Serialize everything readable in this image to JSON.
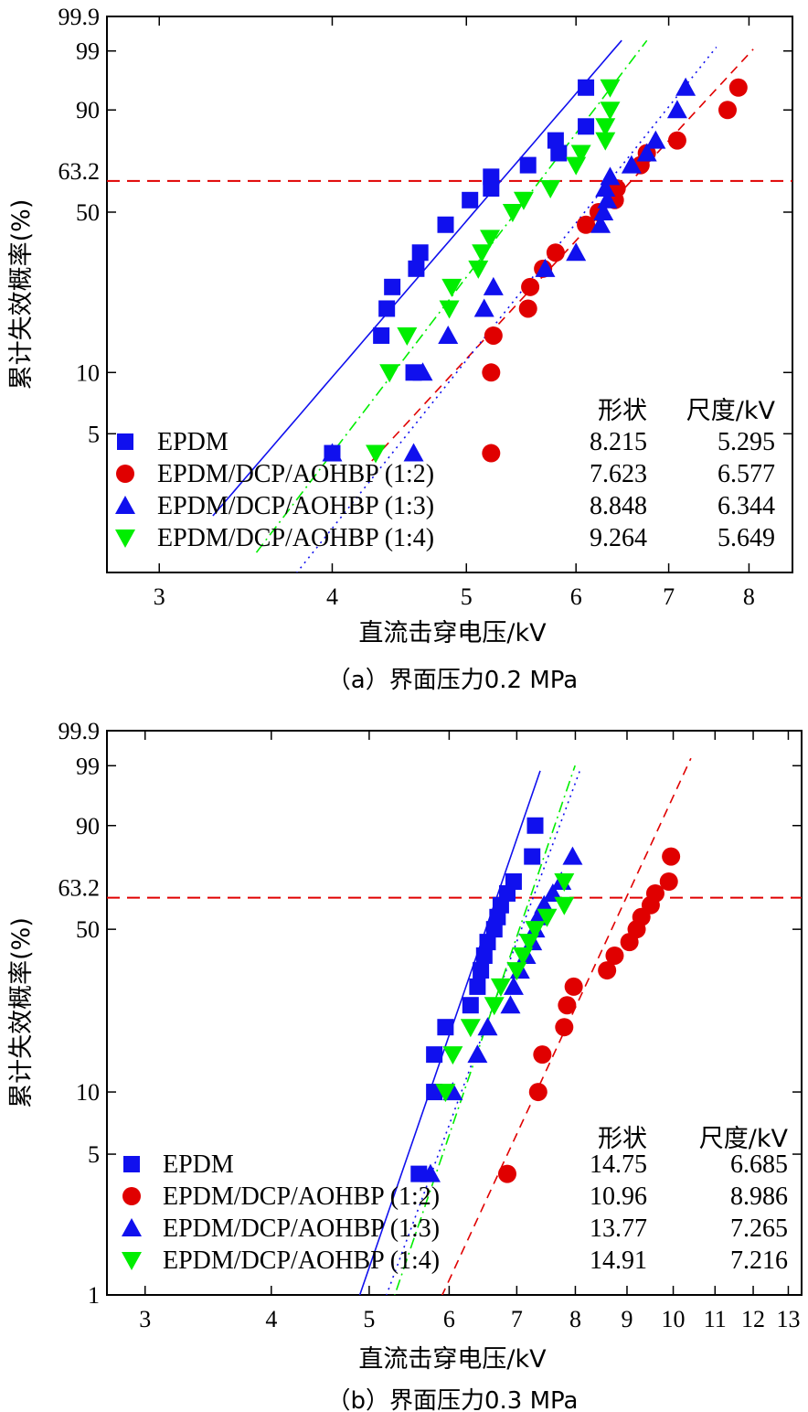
{
  "chart_data": [
    {
      "type": "scatter",
      "panel": "a",
      "caption": "（a）界面压力0.2 MPa",
      "xlabel": "直流击穿电压/kV",
      "ylabel": "累计失效概率(%)",
      "x_scale": "log",
      "y_scale": "weibull",
      "xlim": [
        2.75,
        8.6
      ],
      "ylim": [
        1,
        99.9
      ],
      "x_ticks": [
        3,
        4,
        5,
        6,
        7,
        8
      ],
      "x_tick_labels": [
        "3",
        "4",
        "5",
        "6",
        "7",
        "8"
      ],
      "y_ticks": [
        5,
        10,
        50,
        90,
        99,
        99.9
      ],
      "y_tick_labels": [
        "5",
        "10",
        "50",
        "90",
        "99",
        "99.9"
      ],
      "reference_line": {
        "y": 63.2,
        "label": "63.2",
        "color": "#e00000"
      },
      "legend_header": {
        "shape": "形状",
        "scale": "尺度/kV"
      },
      "series": [
        {
          "name": "EPDM",
          "shape": "8.215",
          "scale": "5.295",
          "marker": "square",
          "color": "#1010ee",
          "line_color": "#1010ee",
          "line_style": "solid",
          "beta": 8.215,
          "eta": 5.295,
          "x": [
            4.0,
            4.58,
            4.34,
            4.38,
            4.42,
            4.6,
            4.63,
            4.83,
            5.03,
            5.21,
            5.21,
            5.54,
            5.83,
            5.8,
            6.1,
            6.1
          ],
          "y": [
            4,
            10,
            15,
            20,
            25,
            30,
            35,
            45,
            55,
            60,
            65,
            70,
            75,
            80,
            85,
            95
          ]
        },
        {
          "name": "EPDM/DCP/AOHBP (1:2)",
          "shape": "7.623",
          "scale": "6.577",
          "marker": "circle",
          "color": "#e00000",
          "line_color": "#e00000",
          "line_style": "dashed",
          "beta": 7.623,
          "eta": 6.577,
          "x": [
            5.21,
            5.21,
            5.23,
            5.54,
            5.56,
            5.68,
            5.8,
            6.1,
            6.23,
            6.4,
            6.42,
            6.68,
            6.75,
            7.1,
            7.72,
            7.86
          ],
          "y": [
            4,
            10,
            15,
            20,
            25,
            30,
            35,
            45,
            50,
            55,
            60,
            70,
            75,
            80,
            90,
            95
          ]
        },
        {
          "name": "EPDM/DCP/AOHBP (1:3)",
          "shape": "8.848",
          "scale": "6.344",
          "marker": "triangle-up",
          "color": "#1010ee",
          "line_color": "#1010ee",
          "line_style": "dotted",
          "beta": 8.848,
          "eta": 6.344,
          "x": [
            4.0,
            4.58,
            4.65,
            4.85,
            5.15,
            5.23,
            5.7,
            6.0,
            6.25,
            6.28,
            6.32,
            6.3,
            6.35,
            6.58,
            6.75,
            6.85,
            7.1,
            7.2
          ],
          "y": [
            4,
            4,
            10,
            15,
            20,
            25,
            30,
            35,
            45,
            50,
            55,
            60,
            65,
            70,
            75,
            80,
            90,
            95
          ]
        },
        {
          "name": "EPDM/DCP/AOHBP (1:4)",
          "shape": "9.264",
          "scale": "5.649",
          "marker": "triangle-down",
          "color": "#00ee00",
          "line_color": "#00ee00",
          "line_style": "dashdot",
          "beta": 9.264,
          "eta": 5.649,
          "x": [
            4.3,
            4.4,
            4.53,
            4.86,
            4.88,
            5.1,
            5.13,
            5.2,
            5.4,
            5.5,
            5.75,
            6.0,
            6.05,
            6.3,
            6.3,
            6.35,
            6.35
          ],
          "y": [
            4,
            10,
            15,
            20,
            25,
            30,
            35,
            40,
            50,
            55,
            60,
            70,
            75,
            80,
            85,
            90,
            95
          ]
        }
      ]
    },
    {
      "type": "scatter",
      "panel": "b",
      "caption": "（b）界面压力0.3 MPa",
      "xlabel": "直流击穿电压/kV",
      "ylabel": "累计失效概率(%)",
      "x_scale": "log",
      "y_scale": "weibull",
      "xlim": [
        2.75,
        13.4
      ],
      "ylim": [
        1,
        99.9
      ],
      "x_ticks": [
        3,
        4,
        5,
        6,
        7,
        8,
        9,
        10,
        11,
        12,
        13
      ],
      "x_tick_labels": [
        "3",
        "4",
        "5",
        "6",
        "7",
        "8",
        "9",
        "10",
        "11",
        "12",
        "13"
      ],
      "y_ticks": [
        1,
        5,
        10,
        50,
        90,
        99,
        99.9
      ],
      "y_tick_labels": [
        "1",
        "5",
        "10",
        "50",
        "90",
        "99",
        "99.9"
      ],
      "reference_line": {
        "y": 63.2,
        "label": "63.2",
        "color": "#e00000"
      },
      "legend_header": {
        "shape": "形状",
        "scale": "尺度/kV"
      },
      "series": [
        {
          "name": "EPDM",
          "shape": "14.75",
          "scale": "6.685",
          "marker": "square",
          "color": "#1010ee",
          "line_color": "#1010ee",
          "line_style": "solid",
          "beta": 14.75,
          "eta": 6.685,
          "x": [
            5.6,
            5.8,
            5.8,
            5.95,
            6.3,
            6.4,
            6.45,
            6.5,
            6.55,
            6.65,
            6.7,
            6.75,
            6.85,
            6.95,
            7.25,
            7.3
          ],
          "y": [
            4,
            10,
            15,
            20,
            25,
            30,
            35,
            40,
            45,
            50,
            55,
            60,
            65,
            70,
            80,
            90
          ]
        },
        {
          "name": "EPDM/DCP/AOHBP (1:2)",
          "shape": "10.96",
          "scale": "8.986",
          "marker": "circle",
          "color": "#e00000",
          "line_color": "#e00000",
          "line_style": "dashed",
          "beta": 10.96,
          "eta": 8.986,
          "x": [
            6.85,
            7.35,
            7.42,
            7.8,
            7.85,
            7.97,
            8.6,
            8.75,
            9.05,
            9.2,
            9.3,
            9.5,
            9.6,
            9.9,
            9.95
          ],
          "y": [
            4,
            10,
            15,
            20,
            25,
            30,
            35,
            40,
            45,
            50,
            55,
            60,
            65,
            70,
            80
          ]
        },
        {
          "name": "EPDM/DCP/AOHBP (1:3)",
          "shape": "13.77",
          "scale": "7.265",
          "marker": "triangle-up",
          "color": "#1010ee",
          "line_color": "#1010ee",
          "line_style": "dotted",
          "beta": 13.77,
          "eta": 7.265,
          "x": [
            5.75,
            6.05,
            6.4,
            6.55,
            6.9,
            6.95,
            7.05,
            7.15,
            7.25,
            7.3,
            7.35,
            7.45,
            7.6,
            7.75,
            7.95
          ],
          "y": [
            4,
            10,
            15,
            20,
            25,
            30,
            35,
            40,
            45,
            50,
            55,
            60,
            65,
            70,
            80
          ]
        },
        {
          "name": "EPDM/DCP/AOHBP (1:4)",
          "shape": "14.91",
          "scale": "7.216",
          "marker": "triangle-down",
          "color": "#00ee00",
          "line_color": "#00ee00",
          "line_style": "dashdot",
          "beta": 14.91,
          "eta": 7.216,
          "x": [
            5.95,
            6.05,
            6.3,
            6.65,
            6.75,
            7.0,
            7.1,
            7.2,
            7.3,
            7.5,
            7.8,
            7.8
          ],
          "y": [
            10,
            15,
            20,
            25,
            30,
            35,
            40,
            45,
            50,
            55,
            60,
            70
          ]
        }
      ]
    }
  ]
}
